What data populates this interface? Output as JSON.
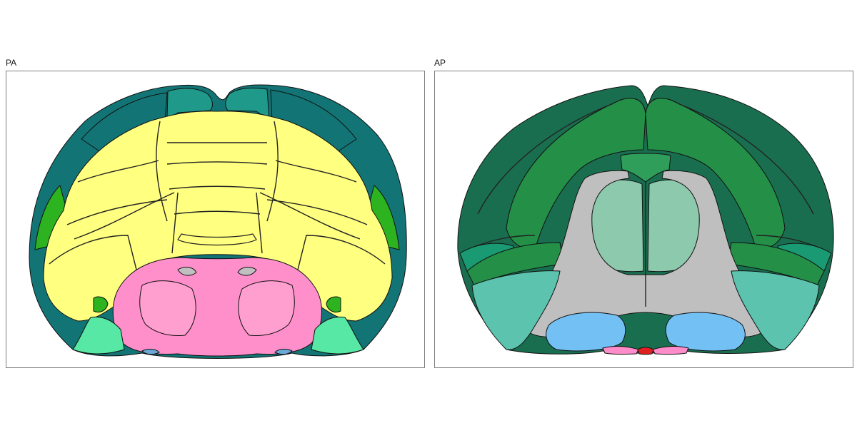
{
  "panels": [
    {
      "title": "PA",
      "colors": {
        "cortex_teal": "#137475",
        "cortex_teal_light": "#1f9a8a",
        "cortex_green": "#2db320",
        "cerebellum_yellow": "#ffff80",
        "medulla_pink": "#ff8fca",
        "medulla_pink_light": "#ff9fd0",
        "brainstem_mint": "#57e8a5",
        "ventral_blue": "#6aa8d8",
        "fiber_gray": "#c0c0c0"
      }
    },
    {
      "title": "AP",
      "colors": {
        "cortex_dark_green": "#1a6e50",
        "cortex_green": "#238f47",
        "cortex_green_light": "#2e9e5a",
        "cortex_teal": "#1a9a72",
        "striatum_mint": "#8cc9ad",
        "fiber_gray": "#bfbfbf",
        "pallidum_teal": "#5cc3ae",
        "amygdala_blue": "#73c0f5",
        "hypothal_pink": "#ff8cca",
        "hypothal_red": "#e02020"
      }
    }
  ]
}
